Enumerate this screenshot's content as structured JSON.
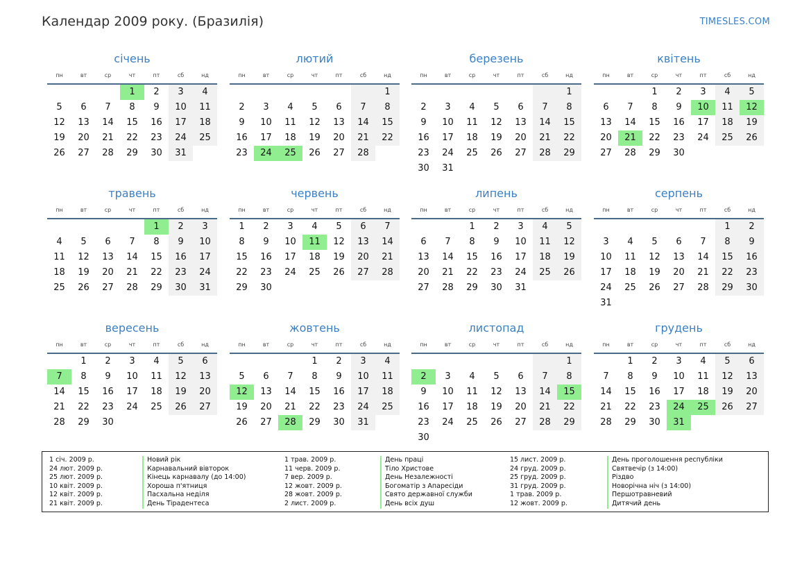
{
  "title": "Календар 2009 року. (Бразилія)",
  "brand": "TIMESLES.COM",
  "colors": {
    "accent": "#3b7fc4",
    "holiday": "#90ee90",
    "weekend": "#f1f1f1"
  },
  "weekdays": [
    "пн",
    "вт",
    "ср",
    "чт",
    "пт",
    "сб",
    "нд"
  ],
  "months": [
    {
      "name": "січень",
      "start": 4,
      "days": 31,
      "holidays": [
        1
      ]
    },
    {
      "name": "лютий",
      "start": 7,
      "days": 28,
      "holidays": [
        24,
        25
      ]
    },
    {
      "name": "березень",
      "start": 7,
      "days": 31,
      "holidays": []
    },
    {
      "name": "квітень",
      "start": 3,
      "days": 30,
      "holidays": [
        10,
        12,
        21
      ]
    },
    {
      "name": "травень",
      "start": 5,
      "days": 31,
      "holidays": [
        1
      ]
    },
    {
      "name": "червень",
      "start": 1,
      "days": 30,
      "holidays": [
        11
      ]
    },
    {
      "name": "липень",
      "start": 3,
      "days": 31,
      "holidays": []
    },
    {
      "name": "серпень",
      "start": 6,
      "days": 31,
      "holidays": []
    },
    {
      "name": "вересень",
      "start": 2,
      "days": 30,
      "holidays": [
        7
      ]
    },
    {
      "name": "жовтень",
      "start": 4,
      "days": 31,
      "holidays": [
        12,
        28
      ]
    },
    {
      "name": "листопад",
      "start": 7,
      "days": 30,
      "holidays": [
        2,
        15
      ]
    },
    {
      "name": "грудень",
      "start": 2,
      "days": 31,
      "holidays": [
        24,
        25,
        31
      ]
    }
  ],
  "legend": [
    {
      "date": "1 січ. 2009 р.",
      "name": "Новий рік"
    },
    {
      "date": "24 лют. 2009 р.",
      "name": "Карнавальний вівторок"
    },
    {
      "date": "25 лют. 2009 р.",
      "name": "Кінець карнавалу (до 14:00)"
    },
    {
      "date": "10 квіт. 2009 р.",
      "name": "Хороша п'ятниця"
    },
    {
      "date": "12 квіт. 2009 р.",
      "name": "Пасхальна неділя"
    },
    {
      "date": "21 квіт. 2009 р.",
      "name": "День Тірадентеса"
    },
    {
      "date": "1 трав. 2009 р.",
      "name": "День праці"
    },
    {
      "date": "11 черв. 2009 р.",
      "name": "Тіло Христове"
    },
    {
      "date": "7 вер. 2009 р.",
      "name": "День Незалежності"
    },
    {
      "date": "12 жовт. 2009 р.",
      "name": "Богоматір з Апаресіди"
    },
    {
      "date": "28 жовт. 2009 р.",
      "name": "Свято державної служби"
    },
    {
      "date": "2 лист. 2009 р.",
      "name": "День всіх душ"
    },
    {
      "date": "15 лист. 2009 р.",
      "name": "День проголошення республіки"
    },
    {
      "date": "24 груд. 2009 р.",
      "name": "Святвечір (з 14:00)"
    },
    {
      "date": "25 груд. 2009 р.",
      "name": "Різдво"
    },
    {
      "date": "31 груд. 2009 р.",
      "name": "Новорічна ніч (з 14:00)"
    },
    {
      "date": "1 трав. 2009 р.",
      "name": "Першотравневий"
    },
    {
      "date": "12 жовт. 2009 р.",
      "name": "Дитячий день"
    }
  ]
}
